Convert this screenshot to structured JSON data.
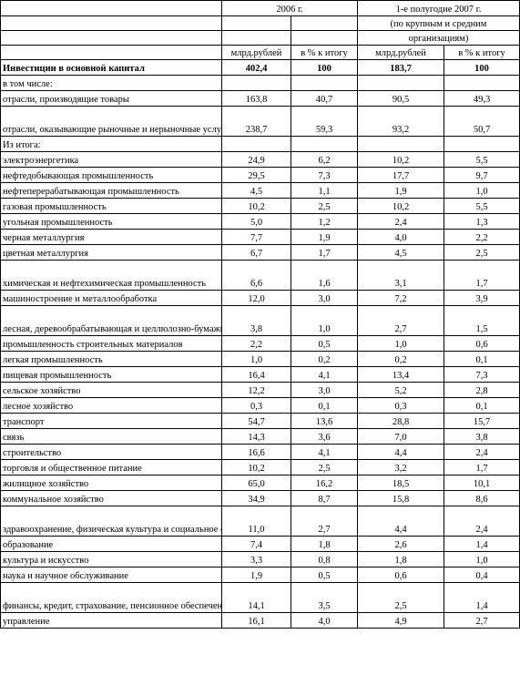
{
  "header": {
    "period1": "2006 г.",
    "period2_line1": "1-е полугодие 2007 г.",
    "period2_line2": "(по крупным и средним",
    "period2_line3": "организациям)",
    "col_bln1": "млрд.рублей",
    "col_pct1": "в % к итогу",
    "col_bln2": "млрд.рублей",
    "col_pct2": "в % к итогу"
  },
  "rows": [
    {
      "label": "Инвестиции в основной капитал",
      "v1": "402,4",
      "p1": "100",
      "v2": "183,7",
      "p2": "100",
      "bold": true
    },
    {
      "label": "в том числе:",
      "v1": "",
      "p1": "",
      "v2": "",
      "p2": ""
    },
    {
      "label": "отрасли, производящие товары",
      "v1": "163,8",
      "p1": "40,7",
      "v2": "90,5",
      "p2": "49,3"
    },
    {
      "label": "отрасли, оказывающие рыночные и нерыночные услуги",
      "v1": "238,7",
      "p1": "59,3",
      "v2": "93,2",
      "p2": "50,7",
      "tall": true
    },
    {
      "label": "Из итога:",
      "v1": "",
      "p1": "",
      "v2": "",
      "p2": ""
    },
    {
      "label": "электроэнергетика",
      "v1": "24,9",
      "p1": "6,2",
      "v2": "10,2",
      "p2": "5,5"
    },
    {
      "label": "нефтедобывающая промышленность",
      "v1": "29,5",
      "p1": "7,3",
      "v2": "17,7",
      "p2": "9,7"
    },
    {
      "label": "нефтеперерабатывающая промышленность",
      "v1": "4,5",
      "p1": "1,1",
      "v2": "1,9",
      "p2": "1,0"
    },
    {
      "label": "газовая промышленность",
      "v1": "10,2",
      "p1": "2,5",
      "v2": "10,2",
      "p2": "5,5"
    },
    {
      "label": "угольная промышленность",
      "v1": "5,0",
      "p1": "1,2",
      "v2": "2,4",
      "p2": "1,3"
    },
    {
      "label": "черная металлургия",
      "v1": "7,7",
      "p1": "1,9",
      "v2": "4,0",
      "p2": "2,2"
    },
    {
      "label": "цветная металлургия",
      "v1": "6,7",
      "p1": "1,7",
      "v2": "4,5",
      "p2": "2,5"
    },
    {
      "label": "химическая и нефтехимическая промышленность",
      "v1": "6,6",
      "p1": "1,6",
      "v2": "3,1",
      "p2": "1,7",
      "tall": true
    },
    {
      "label": "машиностроение и металлообработка",
      "v1": "12,0",
      "p1": "3,0",
      "v2": "7,2",
      "p2": "3,9"
    },
    {
      "label": "лесная, деревообрабатывающая и целлюлозно-бумажная промышленность",
      "v1": "3,8",
      "p1": "1,0",
      "v2": "2,7",
      "p2": "1,5",
      "tall": true
    },
    {
      "label": "промышленность строительных материалов",
      "v1": "2,2",
      "p1": "0,5",
      "v2": "1,0",
      "p2": "0,6"
    },
    {
      "label": "легкая промышленность",
      "v1": "1,0",
      "p1": "0,2",
      "v2": "0,2",
      "p2": "0,1"
    },
    {
      "label": "пищевая промышленность",
      "v1": "16,4",
      "p1": "4,1",
      "v2": "13,4",
      "p2": "7,3"
    },
    {
      "label": "сельское хозяйство",
      "v1": "12,2",
      "p1": "3,0",
      "v2": "5,2",
      "p2": "2,8"
    },
    {
      "label": "лесное хозяйство",
      "v1": "0,3",
      "p1": "0,1",
      "v2": "0,3",
      "p2": "0,1"
    },
    {
      "label": "транспорт",
      "v1": "54,7",
      "p1": "13,6",
      "v2": "28,8",
      "p2": "15,7"
    },
    {
      "label": "связь",
      "v1": "14,3",
      "p1": "3,6",
      "v2": "7,0",
      "p2": "3,8"
    },
    {
      "label": "строительство",
      "v1": "16,6",
      "p1": "4,1",
      "v2": "4,4",
      "p2": "2,4"
    },
    {
      "label": "торговля и общественное питание",
      "v1": "10,2",
      "p1": "2,5",
      "v2": "3,2",
      "p2": "1,7"
    },
    {
      "label": "жилищное хозяйство",
      "v1": "65,0",
      "p1": "16,2",
      "v2": "18,5",
      "p2": "10,1"
    },
    {
      "label": "коммунальное хозяйство",
      "v1": "34,9",
      "p1": "8,7",
      "v2": "15,8",
      "p2": "8,6"
    },
    {
      "label": "здравоохранение, физическая культура и социальное обеспечение",
      "v1": "11,0",
      "p1": "2,7",
      "v2": "4,4",
      "p2": "2,4",
      "tall": true
    },
    {
      "label": "образование",
      "v1": "7,4",
      "p1": "1,8",
      "v2": "2,6",
      "p2": "1,4"
    },
    {
      "label": "культура и искусство",
      "v1": "3,3",
      "p1": "0,8",
      "v2": "1,8",
      "p2": "1,0"
    },
    {
      "label": "наука и научное обслуживание",
      "v1": "1,9",
      "p1": "0,5",
      "v2": "0,6",
      "p2": "0,4"
    },
    {
      "label": "финансы, кредит, страхование, пенсионное обеспечение",
      "v1": "14,1",
      "p1": "3,5",
      "v2": "2,5",
      "p2": "1,4",
      "tall": true
    },
    {
      "label": "управление",
      "v1": "16,1",
      "p1": "4,0",
      "v2": "4,9",
      "p2": "2,7"
    }
  ]
}
